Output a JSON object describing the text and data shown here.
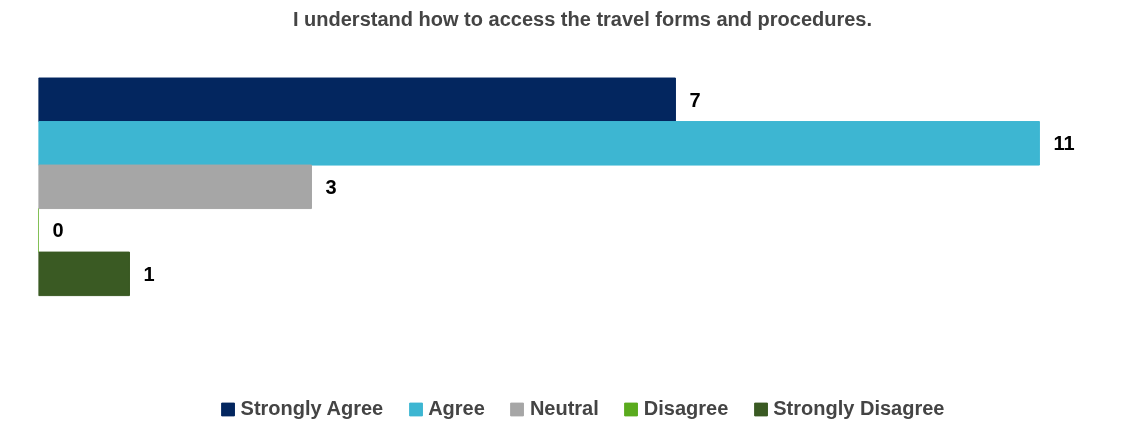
{
  "chart_data": {
    "type": "bar",
    "orientation": "horizontal",
    "title": "I understand how to access the travel forms and procedures.",
    "categories": [
      null
    ],
    "series": [
      {
        "name": "Strongly Agree",
        "color": "#03265f",
        "values": [
          7
        ]
      },
      {
        "name": "Agree",
        "color": "#3db6d2",
        "values": [
          11
        ]
      },
      {
        "name": "Neutral",
        "color": "#a6a6a6",
        "values": [
          3
        ]
      },
      {
        "name": "Disagree",
        "color": "#5aab1e",
        "values": [
          0
        ]
      },
      {
        "name": "Strongly Disagree",
        "color": "#3a5a23",
        "values": [
          1
        ]
      }
    ],
    "data_labels": true,
    "legend": "bottom",
    "tick_labels": false,
    "grid": false
  }
}
